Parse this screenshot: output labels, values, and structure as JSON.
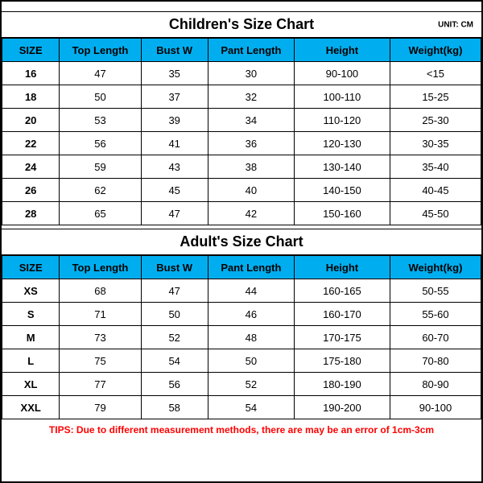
{
  "colors": {
    "header_bg": "#00aeef",
    "border": "#000000",
    "tips_color": "#ff0000",
    "background": "#ffffff"
  },
  "unit_label": "UNIT: CM",
  "children": {
    "title": "Children's Size Chart",
    "columns": [
      "SIZE",
      "Top Length",
      "Bust W",
      "Pant Length",
      "Height",
      "Weight(kg)"
    ],
    "rows": [
      [
        "16",
        "47",
        "35",
        "30",
        "90-100",
        "<15"
      ],
      [
        "18",
        "50",
        "37",
        "32",
        "100-110",
        "15-25"
      ],
      [
        "20",
        "53",
        "39",
        "34",
        "110-120",
        "25-30"
      ],
      [
        "22",
        "56",
        "41",
        "36",
        "120-130",
        "30-35"
      ],
      [
        "24",
        "59",
        "43",
        "38",
        "130-140",
        "35-40"
      ],
      [
        "26",
        "62",
        "45",
        "40",
        "140-150",
        "40-45"
      ],
      [
        "28",
        "65",
        "47",
        "42",
        "150-160",
        "45-50"
      ]
    ]
  },
  "adult": {
    "title": "Adult's Size Chart",
    "columns": [
      "SIZE",
      "Top Length",
      "Bust W",
      "Pant Length",
      "Height",
      "Weight(kg)"
    ],
    "rows": [
      [
        "XS",
        "68",
        "47",
        "44",
        "160-165",
        "50-55"
      ],
      [
        "S",
        "71",
        "50",
        "46",
        "160-170",
        "55-60"
      ],
      [
        "M",
        "73",
        "52",
        "48",
        "170-175",
        "60-70"
      ],
      [
        "L",
        "75",
        "54",
        "50",
        "175-180",
        "70-80"
      ],
      [
        "XL",
        "77",
        "56",
        "52",
        "180-190",
        "80-90"
      ],
      [
        "XXL",
        "79",
        "58",
        "54",
        "190-200",
        "90-100"
      ]
    ]
  },
  "tips": "TIPS: Due to different measurement methods, there are may be an error of 1cm-3cm"
}
